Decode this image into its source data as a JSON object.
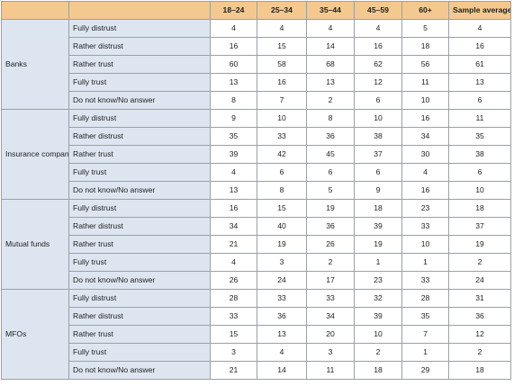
{
  "columns": [
    "18–24",
    "25–34",
    "35–44",
    "45–59",
    "60+",
    "Sample average"
  ],
  "groups": [
    {
      "name": "Banks",
      "rows": [
        {
          "label": "Fully distrust",
          "values": [
            "4",
            "4",
            "4",
            "4",
            "5",
            "4"
          ]
        },
        {
          "label": "Rather distrust",
          "values": [
            "16",
            "15",
            "14",
            "16",
            "18",
            "16"
          ]
        },
        {
          "label": "Rather trust",
          "values": [
            "60",
            "58",
            "68",
            "62",
            "56",
            "61"
          ]
        },
        {
          "label": "Fully trust",
          "values": [
            "13",
            "16",
            "13",
            "12",
            "11",
            "13"
          ]
        },
        {
          "label": "Do not know/No answer",
          "values": [
            "8",
            "7",
            "2",
            "6",
            "10",
            "6"
          ]
        }
      ]
    },
    {
      "name": "Insurance companies",
      "rows": [
        {
          "label": "Fully distrust",
          "values": [
            "9",
            "10",
            "8",
            "10",
            "16",
            "11"
          ]
        },
        {
          "label": "Rather distrust",
          "values": [
            "35",
            "33",
            "36",
            "38",
            "34",
            "35"
          ]
        },
        {
          "label": "Rather trust",
          "values": [
            "39",
            "42",
            "45",
            "37",
            "30",
            "38"
          ]
        },
        {
          "label": "Fully trust",
          "values": [
            "4",
            "6",
            "6",
            "6",
            "4",
            "6"
          ]
        },
        {
          "label": "Do not know/No answer",
          "values": [
            "13",
            "8",
            "5",
            "9",
            "16",
            "10"
          ]
        }
      ]
    },
    {
      "name": "Mutual funds",
      "rows": [
        {
          "label": "Fully distrust",
          "values": [
            "16",
            "15",
            "19",
            "18",
            "23",
            "18"
          ]
        },
        {
          "label": "Rather distrust",
          "values": [
            "34",
            "40",
            "36",
            "39",
            "33",
            "37"
          ]
        },
        {
          "label": "Rather trust",
          "values": [
            "21",
            "19",
            "26",
            "19",
            "10",
            "19"
          ]
        },
        {
          "label": "Fully trust",
          "values": [
            "4",
            "3",
            "2",
            "1",
            "1",
            "2"
          ]
        },
        {
          "label": "Do not know/No answer",
          "values": [
            "26",
            "24",
            "17",
            "23",
            "33",
            "24"
          ]
        }
      ]
    },
    {
      "name": "MFOs",
      "rows": [
        {
          "label": "Fully distrust",
          "values": [
            "28",
            "33",
            "33",
            "32",
            "28",
            "31"
          ]
        },
        {
          "label": "Rather distrust",
          "values": [
            "33",
            "36",
            "34",
            "39",
            "35",
            "36"
          ]
        },
        {
          "label": "Rather trust",
          "values": [
            "15",
            "13",
            "20",
            "10",
            "7",
            "12"
          ]
        },
        {
          "label": "Fully trust",
          "values": [
            "3",
            "4",
            "3",
            "2",
            "1",
            "2"
          ]
        },
        {
          "label": "Do not know/No answer",
          "values": [
            "21",
            "14",
            "11",
            "18",
            "29",
            "18"
          ]
        }
      ]
    }
  ],
  "colors": {
    "header_bg": "#f3c98f",
    "label_bg": "#dde6f0",
    "value_bg": "#ffffff",
    "border": "#9aa0a6"
  }
}
